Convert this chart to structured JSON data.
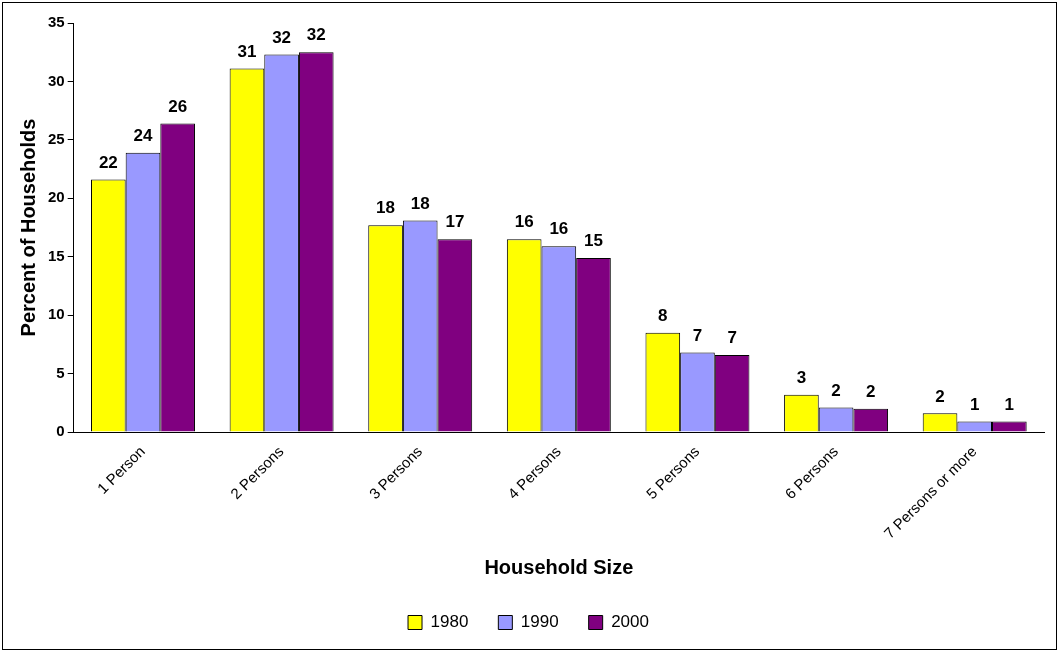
{
  "chart_data": {
    "type": "bar",
    "xlabel": "Household Size",
    "ylabel": "Percent of Households",
    "categories": [
      "1 Person",
      "2 Persons",
      "3 Persons",
      "4 Persons",
      "5 Persons",
      "6 Persons",
      "7 Persons or more"
    ],
    "series": [
      {
        "name": "1980",
        "color": "#ffff00",
        "values": [
          21.6,
          31.1,
          17.7,
          16.5,
          8.5,
          3.2,
          1.6
        ],
        "value_labels": [
          "22",
          "31",
          "18",
          "16",
          "8",
          "3",
          "2"
        ]
      },
      {
        "name": "1990",
        "color": "#9999ff",
        "values": [
          23.9,
          32.3,
          18.1,
          15.9,
          6.8,
          2.1,
          0.9
        ],
        "value_labels": [
          "24",
          "32",
          "18",
          "16",
          "7",
          "2",
          "1"
        ]
      },
      {
        "name": "2000",
        "color": "#800080",
        "values": [
          26.4,
          32.5,
          16.5,
          14.9,
          6.6,
          2.0,
          0.9
        ],
        "value_labels": [
          "26",
          "32",
          "17",
          "15",
          "7",
          "2",
          "1"
        ]
      }
    ],
    "ylim": [
      0,
      35
    ],
    "yticks": [
      0,
      5,
      10,
      15,
      20,
      25,
      30,
      35
    ],
    "grid": false,
    "legend": "bottom"
  }
}
